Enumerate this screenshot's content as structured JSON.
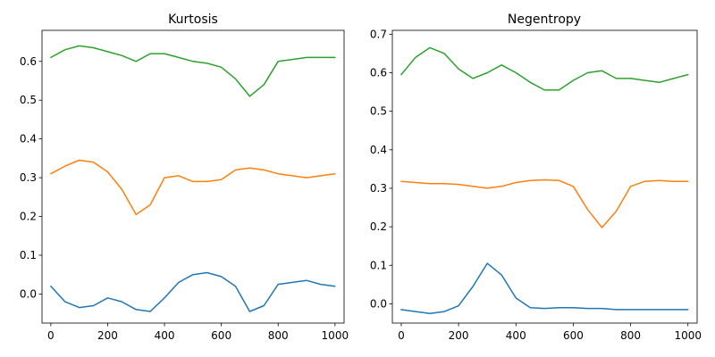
{
  "chart_data": [
    {
      "type": "line",
      "title": "Kurtosis",
      "xlabel": "",
      "ylabel": "",
      "xlim": [
        -31,
        1032
      ],
      "ylim": [
        -0.075,
        0.68
      ],
      "xticks": [
        0,
        200,
        400,
        600,
        800,
        1000
      ],
      "yticks": [
        0.0,
        0.1,
        0.2,
        0.3,
        0.4,
        0.5,
        0.6
      ],
      "ytick_labels": [
        "0.0",
        "0.1",
        "0.2",
        "0.3",
        "0.4",
        "0.5",
        "0.6"
      ],
      "grid": false,
      "x": [
        0,
        50,
        100,
        150,
        200,
        250,
        300,
        350,
        400,
        450,
        500,
        550,
        600,
        650,
        700,
        750,
        800,
        850,
        900,
        950,
        1000
      ],
      "series": [
        {
          "color": "#1f77b4",
          "values": [
            0.02,
            -0.02,
            -0.035,
            -0.03,
            -0.01,
            -0.02,
            -0.04,
            -0.045,
            -0.01,
            0.03,
            0.05,
            0.055,
            0.045,
            0.02,
            -0.045,
            -0.03,
            0.025,
            0.03,
            0.035,
            0.025,
            0.02
          ]
        },
        {
          "color": "#ff7f0e",
          "values": [
            0.31,
            0.33,
            0.345,
            0.34,
            0.315,
            0.27,
            0.205,
            0.23,
            0.3,
            0.305,
            0.29,
            0.29,
            0.295,
            0.32,
            0.325,
            0.32,
            0.31,
            0.305,
            0.3,
            0.305,
            0.31
          ]
        },
        {
          "color": "#2ca02c",
          "values": [
            0.61,
            0.63,
            0.64,
            0.635,
            0.625,
            0.615,
            0.6,
            0.62,
            0.62,
            0.61,
            0.6,
            0.595,
            0.585,
            0.555,
            0.51,
            0.54,
            0.6,
            0.605,
            0.61,
            0.61,
            0.61
          ]
        }
      ]
    },
    {
      "type": "line",
      "title": "Negentropy",
      "xlabel": "",
      "ylabel": "",
      "xlim": [
        -31,
        1032
      ],
      "ylim": [
        -0.05,
        0.71
      ],
      "xticks": [
        0,
        200,
        400,
        600,
        800,
        1000
      ],
      "yticks": [
        0.0,
        0.1,
        0.2,
        0.3,
        0.4,
        0.5,
        0.6,
        0.7
      ],
      "ytick_labels": [
        "0.0",
        "0.1",
        "0.2",
        "0.3",
        "0.4",
        "0.5",
        "0.6",
        "0.7"
      ],
      "grid": false,
      "x": [
        0,
        50,
        100,
        150,
        200,
        250,
        300,
        350,
        400,
        450,
        500,
        550,
        600,
        650,
        700,
        750,
        800,
        850,
        900,
        950,
        1000
      ],
      "series": [
        {
          "color": "#1f77b4",
          "values": [
            -0.015,
            -0.02,
            -0.025,
            -0.02,
            -0.005,
            0.045,
            0.105,
            0.075,
            0.015,
            -0.01,
            -0.012,
            -0.01,
            -0.01,
            -0.012,
            -0.012,
            -0.015,
            -0.015,
            -0.015,
            -0.015,
            -0.015,
            -0.015
          ]
        },
        {
          "color": "#ff7f0e",
          "values": [
            0.318,
            0.315,
            0.312,
            0.312,
            0.31,
            0.305,
            0.3,
            0.305,
            0.315,
            0.32,
            0.322,
            0.32,
            0.305,
            0.245,
            0.198,
            0.24,
            0.305,
            0.318,
            0.32,
            0.318,
            0.318
          ]
        },
        {
          "color": "#2ca02c",
          "values": [
            0.595,
            0.64,
            0.665,
            0.65,
            0.61,
            0.585,
            0.6,
            0.62,
            0.6,
            0.575,
            0.555,
            0.555,
            0.58,
            0.6,
            0.605,
            0.585,
            0.585,
            0.58,
            0.575,
            0.585,
            0.595
          ]
        }
      ]
    }
  ]
}
